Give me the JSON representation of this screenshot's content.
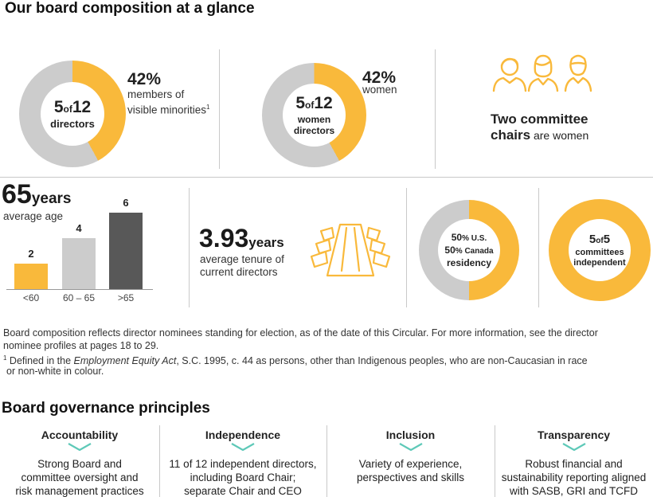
{
  "title": "Our board composition at a glance",
  "colors": {
    "accent": "#f9b93b",
    "grey": "#cccccc",
    "dark": "#585858",
    "teal": "#5ec9b8"
  },
  "donut1": {
    "count": "5",
    "of": "of",
    "total": "12",
    "label": "directors",
    "pct": 42,
    "pct_text": "42%",
    "desc_line1": "members of",
    "desc_line2": "visible minorities",
    "sup": "1"
  },
  "donut2": {
    "count": "5",
    "of": "of",
    "total": "12",
    "label_line1": "women",
    "label_line2": "directors",
    "pct": 42,
    "pct_text": "42%",
    "desc": "women"
  },
  "chairs": {
    "line1": "Two committee",
    "line2_bold": "chairs",
    "line2_rest": " are women",
    "icon": "people-icon"
  },
  "age": {
    "number": "65",
    "unit": "years",
    "label": "average age",
    "bars": [
      {
        "category": "<60",
        "value": 2,
        "value_text": "2"
      },
      {
        "category": "60 – 65",
        "value": 4,
        "value_text": "4"
      },
      {
        "category": ">65",
        "value": 6,
        "value_text": "6"
      }
    ]
  },
  "tenure": {
    "number": "3.93",
    "unit": "years",
    "line1": "average tenure of",
    "line2": "current directors",
    "icon": "boardroom-table-icon"
  },
  "residency": {
    "us_pct": 50,
    "us_text": "50",
    "us_unit": "% U.S.",
    "ca_text": "50",
    "ca_unit": "% Canada",
    "label": "residency"
  },
  "independent": {
    "count": "5",
    "of": "of",
    "total": "5",
    "label_line1": "committees",
    "label_line2": "independent",
    "pct": 100
  },
  "footnote": {
    "line1": "Board composition reflects director nominees standing for election, as of the date of this Circular. For more information, see the director",
    "line2": "nominee profiles at pages 18 to 29.",
    "sup": "1",
    "fn_pre": " Defined in the ",
    "fn_italic": "Employment Equity Act",
    "fn_post": ", S.C. 1995, c. 44 as persons, other than Indigenous peoples, who are non-Caucasian in race",
    "fn_line2": "or non-white in colour."
  },
  "governance": {
    "title": "Board governance principles",
    "principles": [
      {
        "title": "Accountability",
        "line1": "Strong Board and",
        "line2": "committee oversight and",
        "line3": "risk management practices"
      },
      {
        "title": "Independence",
        "line1": "11 of 12 independent directors,",
        "line2": "including Board Chair;",
        "line3": "separate Chair and CEO"
      },
      {
        "title": "Inclusion",
        "line1": "Variety of experience,",
        "line2": "perspectives and skills",
        "line3": ""
      },
      {
        "title": "Transparency",
        "line1": "Robust financial and",
        "line2": "sustainability reporting aligned",
        "line3": "with SASB, GRI and TCFD"
      }
    ]
  }
}
